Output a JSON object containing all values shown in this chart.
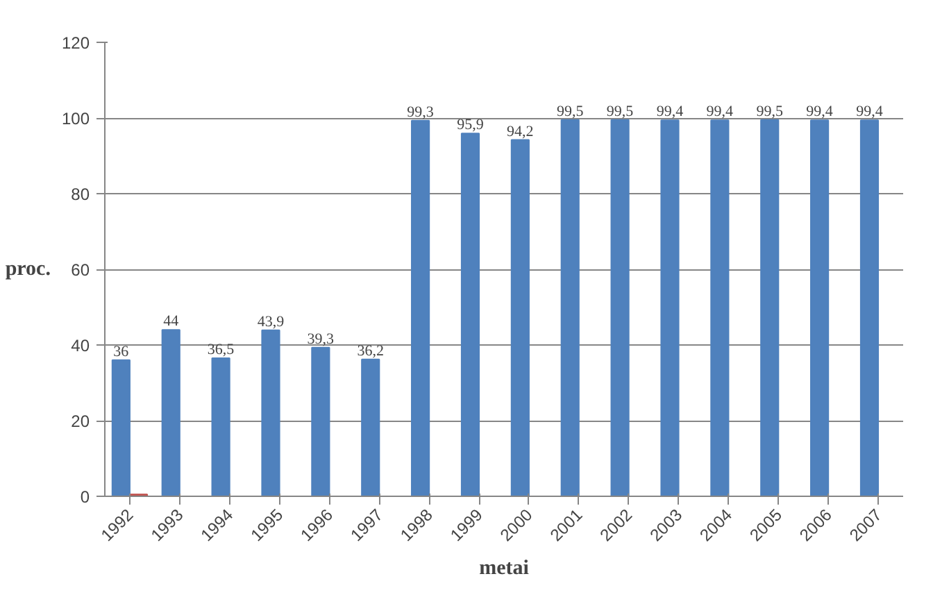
{
  "chart_data": {
    "type": "bar",
    "xlabel": "metai",
    "ylabel": "proc.",
    "categories": [
      "1992",
      "1993",
      "1994",
      "1995",
      "1996",
      "1997",
      "1998",
      "1999",
      "2000",
      "2001",
      "2002",
      "2003",
      "2004",
      "2005",
      "2006",
      "2007"
    ],
    "series": [
      {
        "color": "#4f81bd",
        "values": [
          36,
          44,
          36.5,
          43.9,
          39.3,
          36.2,
          99.3,
          95.9,
          94.2,
          99.5,
          99.5,
          99.4,
          99.4,
          99.5,
          99.4,
          99.4
        ],
        "value_labels": [
          "36",
          "44",
          "36,5",
          "43,9",
          "39,3",
          "36,2",
          "99,3",
          "95,9",
          "94,2",
          "99,5",
          "99,5",
          "99,4",
          "99,4",
          "99,5",
          "99,4",
          "99,4"
        ]
      },
      {
        "color": "#c0504d",
        "values": [
          0.5,
          null,
          null,
          null,
          null,
          null,
          null,
          null,
          null,
          null,
          null,
          null,
          null,
          null,
          null,
          null
        ]
      }
    ],
    "ylim": [
      0,
      120
    ],
    "yticks": [
      0,
      20,
      40,
      60,
      80,
      100,
      120
    ],
    "grid": "y"
  }
}
